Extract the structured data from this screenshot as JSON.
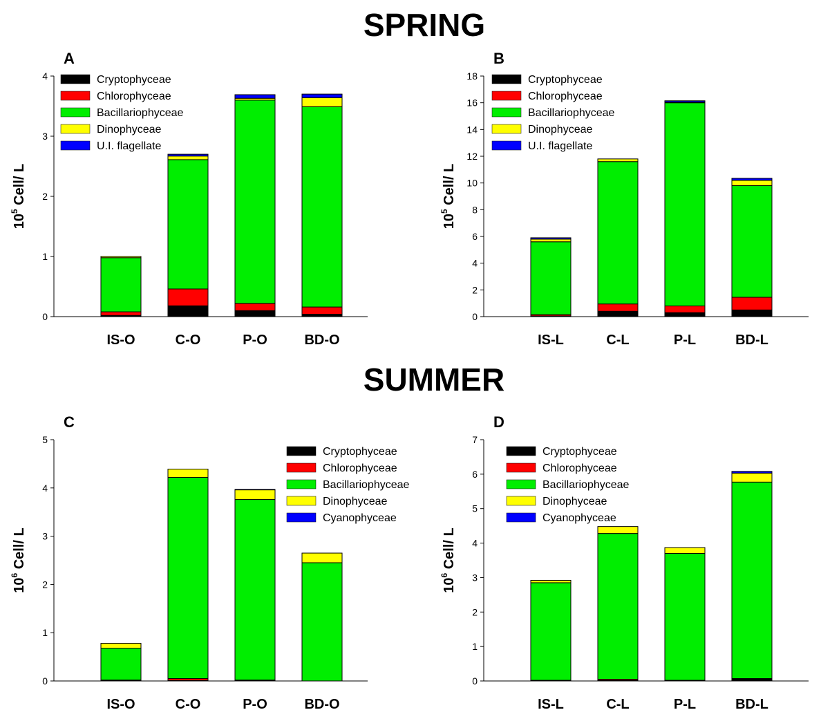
{
  "headings": {
    "spring": "SPRING",
    "summer": "SUMMER"
  },
  "colors": {
    "Cryptophyceae": "#000000",
    "Chlorophyceae": "#ff0000",
    "Bacillariophyceae": "#00ee00",
    "Dinophyceae": "#ffff00",
    "U.I. flagellate": "#0000ff",
    "Cyanophyceae": "#0000ff"
  },
  "chart_data": [
    {
      "panel": "A",
      "type": "bar",
      "stacked": true,
      "ylabel": {
        "base": "10",
        "exp": "5",
        "unit": " Cell/ L"
      },
      "ylim": [
        0,
        4
      ],
      "yticks": [
        0,
        1,
        2,
        3,
        4
      ],
      "categories": [
        "IS-O",
        "C-O",
        "P-O",
        "BD-O"
      ],
      "legend_position": "top-left",
      "series": [
        {
          "name": "Cryptophyceae",
          "values": [
            0.02,
            0.18,
            0.1,
            0.04
          ]
        },
        {
          "name": "Chlorophyceae",
          "values": [
            0.06,
            0.28,
            0.12,
            0.12
          ]
        },
        {
          "name": "Bacillariophyceae",
          "values": [
            0.9,
            2.15,
            3.38,
            3.33
          ]
        },
        {
          "name": "Dinophyceae",
          "values": [
            0.02,
            0.06,
            0.03,
            0.15
          ]
        },
        {
          "name": "U.I. flagellate",
          "values": [
            0.0,
            0.03,
            0.06,
            0.06
          ]
        }
      ]
    },
    {
      "panel": "B",
      "type": "bar",
      "stacked": true,
      "ylabel": {
        "base": "10",
        "exp": "5",
        "unit": " Cell/ L"
      },
      "ylim": [
        0,
        18
      ],
      "yticks": [
        0,
        2,
        4,
        6,
        8,
        10,
        12,
        14,
        16,
        18
      ],
      "categories": [
        "IS-L",
        "C-L",
        "P-L",
        "BD-L"
      ],
      "legend_position": "top-left",
      "series": [
        {
          "name": "Cryptophyceae",
          "values": [
            0.05,
            0.4,
            0.3,
            0.5
          ]
        },
        {
          "name": "Chlorophyceae",
          "values": [
            0.1,
            0.55,
            0.5,
            0.95
          ]
        },
        {
          "name": "Bacillariophyceae",
          "values": [
            5.45,
            10.65,
            15.2,
            8.35
          ]
        },
        {
          "name": "Dinophyceae",
          "values": [
            0.2,
            0.2,
            0.05,
            0.4
          ]
        },
        {
          "name": "U.I. flagellate",
          "values": [
            0.1,
            0.0,
            0.1,
            0.15
          ]
        }
      ]
    },
    {
      "panel": "C",
      "type": "bar",
      "stacked": true,
      "ylabel": {
        "base": "10",
        "exp": "6",
        "unit": " Cell/ L"
      },
      "ylim": [
        0,
        5
      ],
      "yticks": [
        0,
        1,
        2,
        3,
        4,
        5
      ],
      "categories": [
        "IS-O",
        "C-O",
        "P-O",
        "BD-O"
      ],
      "legend_position": "top-right",
      "series": [
        {
          "name": "Cryptophyceae",
          "values": [
            0.01,
            0.01,
            0.01,
            0.0
          ]
        },
        {
          "name": "Chlorophyceae",
          "values": [
            0.01,
            0.04,
            0.01,
            0.0
          ]
        },
        {
          "name": "Bacillariophyceae",
          "values": [
            0.66,
            4.17,
            3.74,
            2.45
          ]
        },
        {
          "name": "Dinophyceae",
          "values": [
            0.1,
            0.17,
            0.2,
            0.2
          ]
        },
        {
          "name": "Cyanophyceae",
          "values": [
            0.0,
            0.0,
            0.01,
            0.0
          ]
        }
      ]
    },
    {
      "panel": "D",
      "type": "bar",
      "stacked": true,
      "ylabel": {
        "base": "10",
        "exp": "6",
        "unit": " Cell/ L"
      },
      "ylim": [
        0,
        7
      ],
      "yticks": [
        0,
        1,
        2,
        3,
        4,
        5,
        6,
        7
      ],
      "categories": [
        "IS-L",
        "C-L",
        "P-L",
        "BD-L"
      ],
      "legend_position": "top-left",
      "series": [
        {
          "name": "Cryptophyceae",
          "values": [
            0.01,
            0.02,
            0.01,
            0.05
          ]
        },
        {
          "name": "Chlorophyceae",
          "values": [
            0.01,
            0.03,
            0.01,
            0.02
          ]
        },
        {
          "name": "Bacillariophyceae",
          "values": [
            2.83,
            4.23,
            3.68,
            5.7
          ]
        },
        {
          "name": "Dinophyceae",
          "values": [
            0.07,
            0.2,
            0.17,
            0.26
          ]
        },
        {
          "name": "Cyanophyceae",
          "values": [
            0.0,
            0.0,
            0.0,
            0.05
          ]
        }
      ]
    }
  ]
}
